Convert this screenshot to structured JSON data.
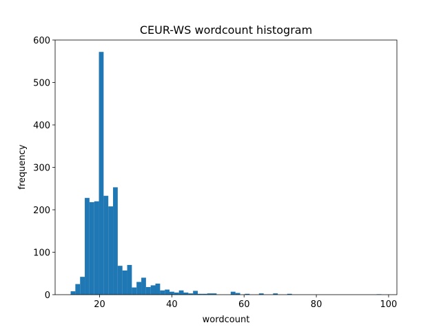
{
  "chart_data": {
    "type": "histogram",
    "title": "CEUR-WS wordcount histogram",
    "x_label": "wordcount",
    "y_label": "frequency",
    "color": "#1f77b4",
    "bins": [
      12.0,
      13.3,
      14.61,
      15.91,
      17.21,
      18.52,
      19.82,
      21.12,
      22.42,
      23.73,
      25.03,
      26.33,
      27.64,
      28.94,
      30.24,
      31.55,
      32.85,
      34.15,
      35.45,
      36.76,
      38.06,
      39.36,
      40.67,
      41.97,
      43.27,
      44.58,
      45.88,
      47.18,
      48.48,
      49.79,
      51.09,
      52.39,
      53.7,
      55.0,
      56.3,
      57.61,
      58.91,
      60.21,
      61.52,
      62.82,
      64.12,
      65.42,
      66.73,
      68.03,
      69.33,
      70.64,
      71.94,
      73.24,
      74.55,
      75.85,
      77.15,
      78.45,
      79.76,
      81.06,
      82.36,
      83.67,
      84.97,
      86.27,
      87.58,
      88.88,
      90.18,
      91.48,
      92.79,
      94.09,
      95.39,
      96.7,
      98.0
    ],
    "values": [
      8,
      25,
      42,
      228,
      218,
      220,
      572,
      233,
      208,
      253,
      68,
      57,
      70,
      17,
      30,
      40,
      18,
      22,
      26,
      10,
      12,
      7,
      5,
      10,
      5,
      3,
      9,
      2,
      2,
      3,
      3,
      0,
      0,
      0,
      7,
      4,
      0,
      2,
      0,
      0,
      3,
      0,
      0,
      3,
      0,
      0,
      2,
      0,
      0,
      0,
      0,
      0,
      0,
      0,
      0,
      0,
      0,
      0,
      0,
      0,
      0,
      0,
      0,
      0,
      0,
      1
    ],
    "xlim": [
      7.7,
      102.3
    ],
    "ylim": [
      0,
      600
    ],
    "xticks": [
      20,
      40,
      60,
      80,
      100
    ],
    "yticks": [
      0,
      100,
      200,
      300,
      400,
      500,
      600
    ]
  }
}
